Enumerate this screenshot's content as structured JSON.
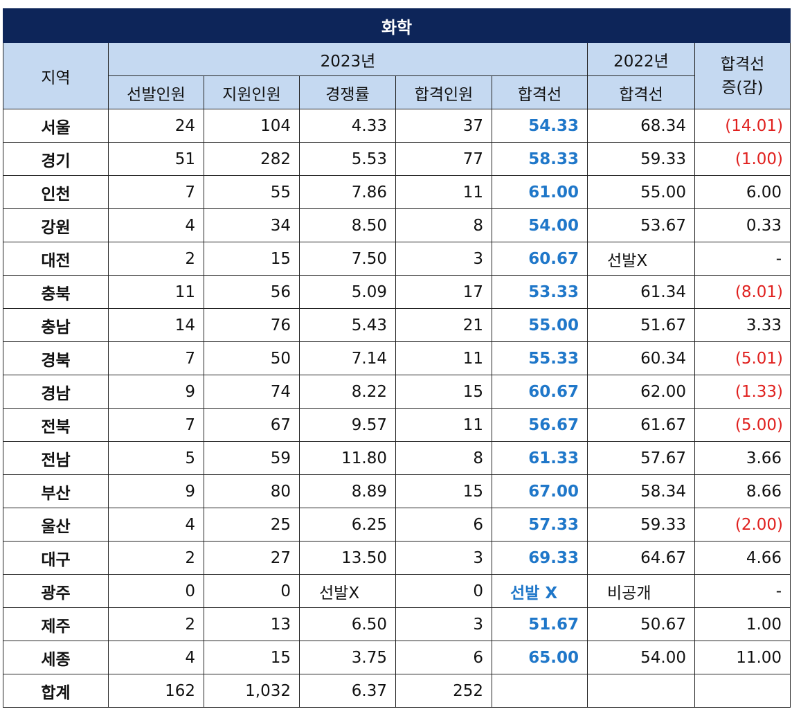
{
  "title": "화학",
  "header": {
    "region": "지역",
    "year_2023": "2023년",
    "year_2022": "2022년",
    "change_line1": "합격선",
    "change_line2": "증(감)",
    "sub": [
      "선발인원",
      "지원인원",
      "경쟁률",
      "합격인원",
      "합격선",
      "합격선"
    ]
  },
  "rows": [
    {
      "region": "서울",
      "sel": "24",
      "app": "104",
      "ratio": "4.33",
      "pass": "37",
      "cut": "54.33",
      "cut22": "68.34",
      "diff": "(14.01)",
      "neg": true
    },
    {
      "region": "경기",
      "sel": "51",
      "app": "282",
      "ratio": "5.53",
      "pass": "77",
      "cut": "58.33",
      "cut22": "59.33",
      "diff": "(1.00)",
      "neg": true
    },
    {
      "region": "인천",
      "sel": "7",
      "app": "55",
      "ratio": "7.86",
      "pass": "11",
      "cut": "61.00",
      "cut22": "55.00",
      "diff": "6.00",
      "neg": false
    },
    {
      "region": "강원",
      "sel": "4",
      "app": "34",
      "ratio": "8.50",
      "pass": "8",
      "cut": "54.00",
      "cut22": "53.67",
      "diff": "0.33",
      "neg": false
    },
    {
      "region": "대전",
      "sel": "2",
      "app": "15",
      "ratio": "7.50",
      "pass": "3",
      "cut": "60.67",
      "cut22": "선발X",
      "diff": "-",
      "neg": false,
      "cut22_left": true
    },
    {
      "region": "충북",
      "sel": "11",
      "app": "56",
      "ratio": "5.09",
      "pass": "17",
      "cut": "53.33",
      "cut22": "61.34",
      "diff": "(8.01)",
      "neg": true
    },
    {
      "region": "충남",
      "sel": "14",
      "app": "76",
      "ratio": "5.43",
      "pass": "21",
      "cut": "55.00",
      "cut22": "51.67",
      "diff": "3.33",
      "neg": false
    },
    {
      "region": "경북",
      "sel": "7",
      "app": "50",
      "ratio": "7.14",
      "pass": "11",
      "cut": "55.33",
      "cut22": "60.34",
      "diff": "(5.01)",
      "neg": true
    },
    {
      "region": "경남",
      "sel": "9",
      "app": "74",
      "ratio": "8.22",
      "pass": "15",
      "cut": "60.67",
      "cut22": "62.00",
      "diff": "(1.33)",
      "neg": true
    },
    {
      "region": "전북",
      "sel": "7",
      "app": "67",
      "ratio": "9.57",
      "pass": "11",
      "cut": "56.67",
      "cut22": "61.67",
      "diff": "(5.00)",
      "neg": true
    },
    {
      "region": "전남",
      "sel": "5",
      "app": "59",
      "ratio": "11.80",
      "pass": "8",
      "cut": "61.33",
      "cut22": "57.67",
      "diff": "3.66",
      "neg": false
    },
    {
      "region": "부산",
      "sel": "9",
      "app": "80",
      "ratio": "8.89",
      "pass": "15",
      "cut": "67.00",
      "cut22": "58.34",
      "diff": "8.66",
      "neg": false
    },
    {
      "region": "울산",
      "sel": "4",
      "app": "25",
      "ratio": "6.25",
      "pass": "6",
      "cut": "57.33",
      "cut22": "59.33",
      "diff": "(2.00)",
      "neg": true
    },
    {
      "region": "대구",
      "sel": "2",
      "app": "27",
      "ratio": "13.50",
      "pass": "3",
      "cut": "69.33",
      "cut22": "64.67",
      "diff": "4.66",
      "neg": false
    },
    {
      "region": "광주",
      "sel": "0",
      "app": "0",
      "ratio": "선발X",
      "pass": "0",
      "cut": "선발 X",
      "cut22": "비공개",
      "diff": "-",
      "neg": false,
      "ratio_left": true,
      "cut_left": true,
      "cut22_left": true
    },
    {
      "region": "제주",
      "sel": "2",
      "app": "13",
      "ratio": "6.50",
      "pass": "3",
      "cut": "51.67",
      "cut22": "50.67",
      "diff": "1.00",
      "neg": false
    },
    {
      "region": "세종",
      "sel": "4",
      "app": "15",
      "ratio": "3.75",
      "pass": "6",
      "cut": "65.00",
      "cut22": "54.00",
      "diff": "11.00",
      "neg": false
    }
  ],
  "total": {
    "region": "합계",
    "sel": "162",
    "app": "1,032",
    "ratio": "6.37",
    "pass": "252",
    "cut": "",
    "cut22": "",
    "diff": ""
  }
}
